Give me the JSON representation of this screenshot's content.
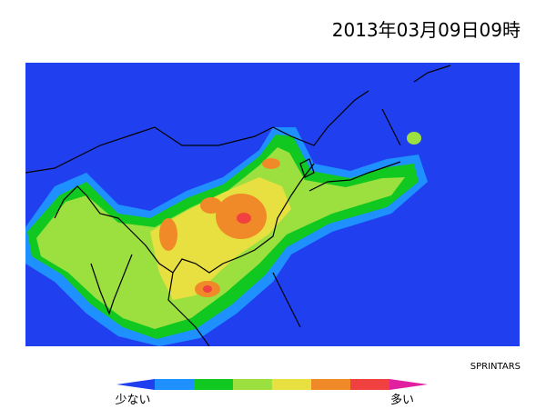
{
  "header": {
    "title": "2013年03月09日09時"
  },
  "map": {
    "credit": "SPRINTARS"
  },
  "legend": {
    "low": "少ない",
    "high": "多い"
  }
}
